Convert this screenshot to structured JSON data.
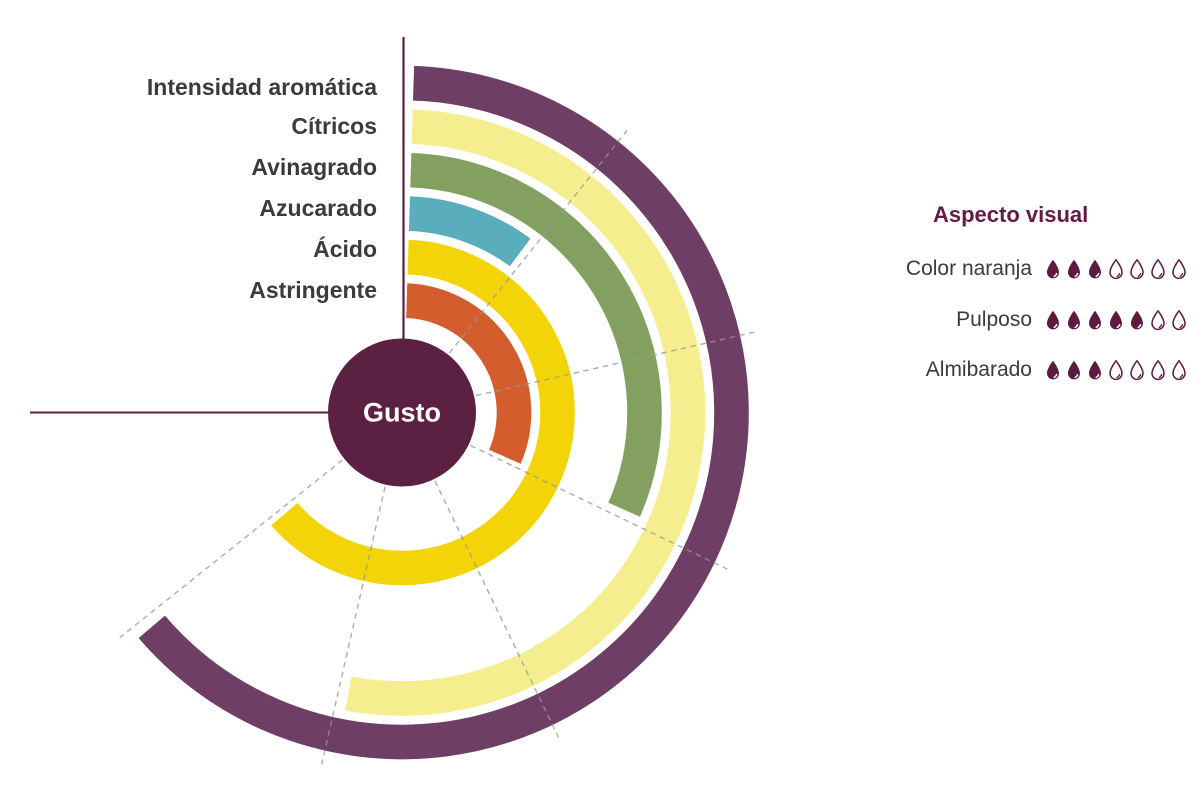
{
  "chart_data": [
    {
      "type": "radial_bar",
      "name": "gusto-wheel",
      "center_label": "Gusto",
      "scale": {
        "min": 0,
        "max": 7,
        "unit_angle_deg": 38.571,
        "full_scale_deg": 270,
        "start": "top",
        "direction": "clockwise"
      },
      "grid": {
        "style": "dashed radial lines at each unit",
        "color": "#999999"
      },
      "categories": [
        "Intensidad aromática",
        "Cítricos",
        "Avinagrado",
        "Azucarado",
        "Ácido",
        "Astringente"
      ],
      "values": [
        6,
        5,
        3,
        1,
        6,
        3
      ],
      "colors": [
        "#6f3e64",
        "#f4ee8f",
        "#84a061",
        "#5aadbc",
        "#f2d408",
        "#d45d2e"
      ]
    },
    {
      "type": "icon_rating",
      "name": "aspecto-visual",
      "title": "Aspecto visual",
      "icon": "droplet",
      "max": 7,
      "items": [
        {
          "label": "Color naranja",
          "value": 3
        },
        {
          "label": "Pulposo",
          "value": 5
        },
        {
          "label": "Almibarado",
          "value": 3
        }
      ]
    }
  ],
  "colors": {
    "center_circle": "#5c2042",
    "center_label_text": "#ffffff",
    "axis_line": "#5a1e3f",
    "grid_dash": "#999999",
    "category_text": "#3b3b3b",
    "legend_title_text": "#641a44",
    "droplet": "#5c1b3f"
  }
}
